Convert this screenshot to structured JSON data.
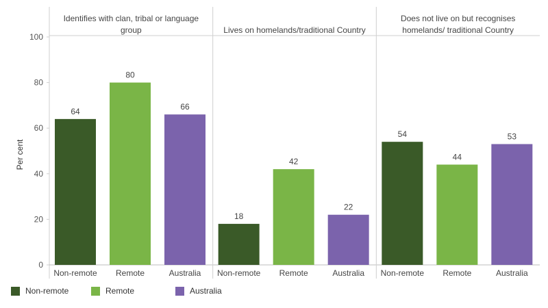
{
  "chart_data": {
    "type": "bar",
    "ylabel": "Per cent",
    "ylim": [
      0,
      100
    ],
    "yticks": [
      "0",
      "20",
      "40",
      "60",
      "80",
      "100"
    ],
    "categories": [
      "Non-remote",
      "Remote",
      "Australia"
    ],
    "colors": [
      "#3a5a28",
      "#7ab547",
      "#7b63ac"
    ],
    "panels": [
      {
        "title_lines": [
          "Identifies with clan, tribal or language",
          "group"
        ],
        "values": [
          64,
          80,
          66
        ]
      },
      {
        "title_lines": [
          "Lives on homelands/traditional Country"
        ],
        "values": [
          18,
          42,
          22
        ]
      },
      {
        "title_lines": [
          "Does not live on but recognises",
          "homelands/ traditional Country"
        ],
        "values": [
          54,
          44,
          53
        ]
      }
    ],
    "legend": [
      {
        "label": "Non-remote",
        "color": "#3a5a28"
      },
      {
        "label": "Remote",
        "color": "#7ab547"
      },
      {
        "label": "Australia",
        "color": "#7b63ac"
      }
    ]
  }
}
